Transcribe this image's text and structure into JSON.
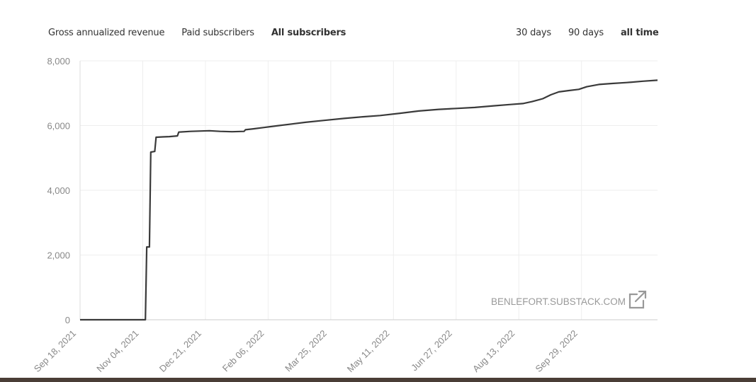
{
  "tabs": {
    "metrics": [
      {
        "label": "Gross annualized revenue",
        "active": false
      },
      {
        "label": "Paid subscribers",
        "active": false
      },
      {
        "label": "All subscribers",
        "active": true
      }
    ],
    "ranges": [
      {
        "label": "30 days",
        "active": false
      },
      {
        "label": "90 days",
        "active": false
      },
      {
        "label": "all time",
        "active": true
      }
    ]
  },
  "watermark": {
    "text": "BENLEFORT.SUBSTACK.COM",
    "icon": "external-link-icon"
  },
  "colors": {
    "line": "#3a3a3a",
    "grid": "#eeeeee",
    "tick_text": "#888888",
    "watermark": "#999999"
  },
  "chart_data": {
    "type": "line",
    "title": "",
    "xlabel": "",
    "ylabel": "",
    "ylim": [
      0,
      8000
    ],
    "yticks": [
      0,
      2000,
      4000,
      6000,
      8000
    ],
    "ytick_labels": [
      "0",
      "2,000",
      "4,000",
      "6,000",
      "8,000"
    ],
    "xlim": [
      "2021-09-18",
      "2022-11-25"
    ],
    "xticks": [
      "2021-09-18",
      "2021-11-04",
      "2021-12-21",
      "2022-02-06",
      "2022-03-25",
      "2022-05-11",
      "2022-06-27",
      "2022-08-13",
      "2022-09-29"
    ],
    "xtick_labels": [
      "Sep 18, 2021",
      "Nov 04, 2021",
      "Dec 21, 2021",
      "Feb 06, 2022",
      "Mar 25, 2022",
      "May 11, 2022",
      "Jun 27, 2022",
      "Aug 13, 2022",
      "Sep 29, 2022"
    ],
    "grid": true,
    "legend": false,
    "series": [
      {
        "points": [
          [
            "2021-09-18",
            0
          ],
          [
            "2021-10-10",
            0
          ],
          [
            "2021-11-05",
            0
          ],
          [
            "2021-11-06",
            0
          ],
          [
            "2021-11-07",
            2250
          ],
          [
            "2021-11-09",
            2250
          ],
          [
            "2021-11-10",
            5180
          ],
          [
            "2021-11-13",
            5200
          ],
          [
            "2021-11-14",
            5640
          ],
          [
            "2021-11-19",
            5650
          ],
          [
            "2021-11-24",
            5660
          ],
          [
            "2021-11-30",
            5680
          ],
          [
            "2021-12-01",
            5800
          ],
          [
            "2021-12-10",
            5820
          ],
          [
            "2021-12-24",
            5840
          ],
          [
            "2022-01-01",
            5820
          ],
          [
            "2022-01-10",
            5810
          ],
          [
            "2022-01-19",
            5820
          ],
          [
            "2022-01-20",
            5870
          ],
          [
            "2022-01-26",
            5900
          ],
          [
            "2022-02-03",
            5940
          ],
          [
            "2022-02-12",
            5990
          ],
          [
            "2022-02-22",
            6040
          ],
          [
            "2022-03-06",
            6100
          ],
          [
            "2022-03-20",
            6160
          ],
          [
            "2022-04-04",
            6220
          ],
          [
            "2022-04-18",
            6270
          ],
          [
            "2022-05-01",
            6310
          ],
          [
            "2022-05-16",
            6380
          ],
          [
            "2022-05-30",
            6450
          ],
          [
            "2022-06-14",
            6500
          ],
          [
            "2022-06-27",
            6530
          ],
          [
            "2022-07-11",
            6560
          ],
          [
            "2022-07-25",
            6610
          ],
          [
            "2022-08-06",
            6650
          ],
          [
            "2022-08-16",
            6680
          ],
          [
            "2022-08-23",
            6740
          ],
          [
            "2022-08-31",
            6830
          ],
          [
            "2022-09-06",
            6950
          ],
          [
            "2022-09-12",
            7040
          ],
          [
            "2022-09-19",
            7080
          ],
          [
            "2022-09-27",
            7120
          ],
          [
            "2022-10-03",
            7200
          ],
          [
            "2022-10-12",
            7270
          ],
          [
            "2022-10-22",
            7300
          ],
          [
            "2022-11-02",
            7330
          ],
          [
            "2022-11-14",
            7370
          ],
          [
            "2022-11-25",
            7400
          ]
        ]
      }
    ]
  }
}
